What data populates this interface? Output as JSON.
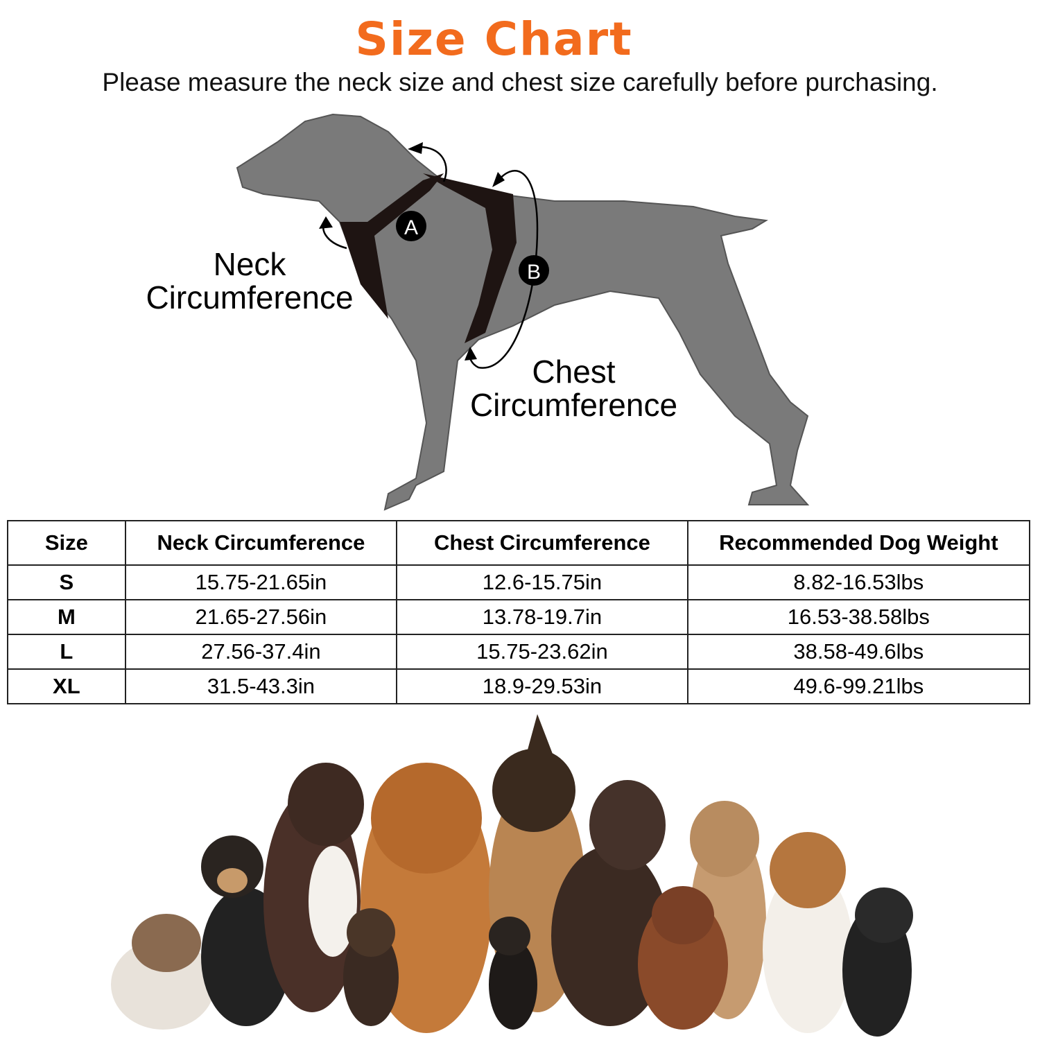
{
  "header": {
    "title": "Size Chart",
    "subtitle": "Please measure the neck size and chest size carefully before purchasing.",
    "title_color": "#f26b1d"
  },
  "diagram": {
    "marker_a": "A",
    "marker_b": "B",
    "neck_label_line1": "Neck",
    "neck_label_line2": "Circumference",
    "chest_label_line1": "Chest",
    "chest_label_line2": "Circumference",
    "silhouette_color": "#7a7a7a"
  },
  "table": {
    "headers": [
      "Size",
      "Neck Circumference",
      "Chest Circumference",
      "Recommended Dog Weight"
    ],
    "rows": [
      {
        "size": "S",
        "neck": "15.75-21.65in",
        "chest": "12.6-15.75in",
        "weight": "8.82-16.53lbs"
      },
      {
        "size": "M",
        "neck": "21.65-27.56in",
        "chest": "13.78-19.7in",
        "weight": "16.53-38.58lbs"
      },
      {
        "size": "L",
        "neck": "27.56-37.4in",
        "chest": "15.75-23.62in",
        "weight": "38.58-49.6lbs"
      },
      {
        "size": "XL",
        "neck": "31.5-43.3in",
        "chest": "18.9-29.53in",
        "weight": "49.6-99.21lbs"
      }
    ]
  }
}
